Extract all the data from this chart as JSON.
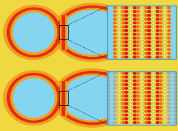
{
  "bg_color": "#f0d840",
  "droplet_color": "#85d5f0",
  "ring_outer": "#f0a020",
  "ring_red": "#e03010",
  "zoom_bg": "#85d5f0",
  "zoom_bilayer_bg": "#f0e060",
  "circle_red": "#dd2200",
  "circle_orange": "#f07010",
  "circle_gray": "#aaaaaa",
  "zoom_border": "#4499cc",
  "fig_width": 2.57,
  "fig_height": 1.89,
  "dpi": 100
}
